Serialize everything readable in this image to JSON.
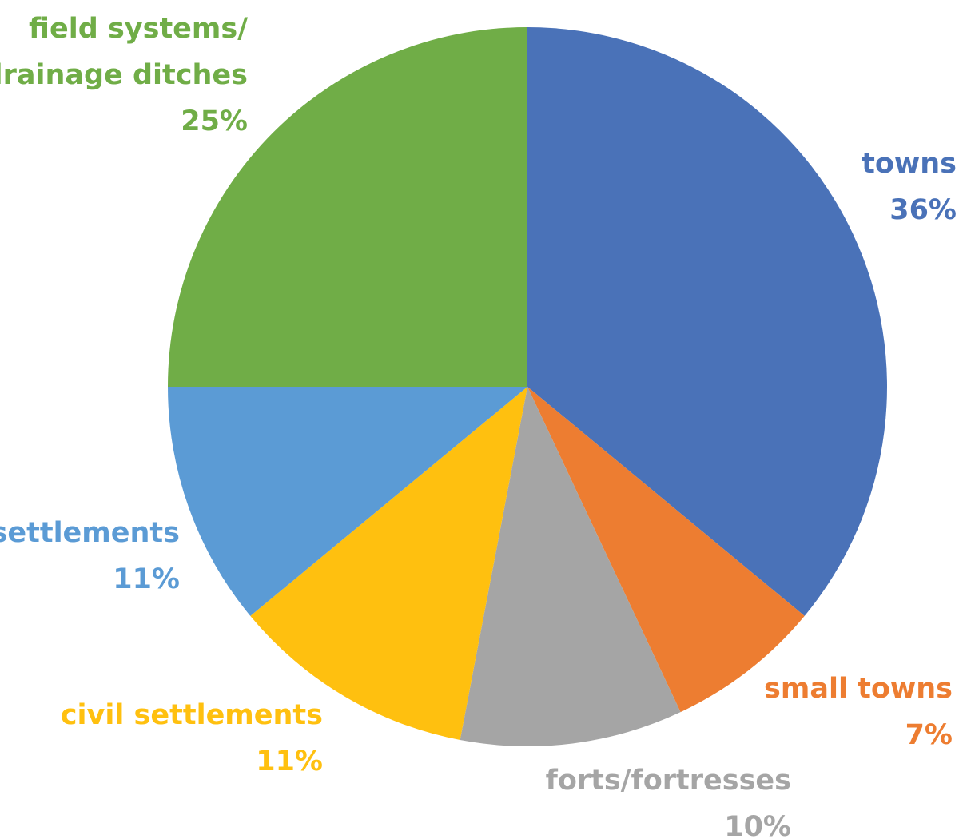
{
  "chart_data": {
    "type": "pie",
    "slices": [
      {
        "name": "towns",
        "label_lines": [
          "towns"
        ],
        "value": 36,
        "value_label": "36%",
        "color": "#4A72B8"
      },
      {
        "name": "small towns",
        "label_lines": [
          "small towns"
        ],
        "value": 7,
        "value_label": "7%",
        "color": "#ED7D31"
      },
      {
        "name": "forts/fortresses",
        "label_lines": [
          "forts/fortresses"
        ],
        "value": 10,
        "value_label": "10%",
        "color": "#A5A5A5"
      },
      {
        "name": "civil settlements",
        "label_lines": [
          "civil settlements"
        ],
        "value": 11,
        "value_label": "11%",
        "color": "#FFC00F"
      },
      {
        "name": "settlements",
        "label_lines": [
          "settlements"
        ],
        "value": 11,
        "value_label": "11%",
        "color": "#5B9BD5"
      },
      {
        "name": "field systems/ drainage ditches",
        "label_lines": [
          "field systems/",
          "drainage ditches"
        ],
        "value": 25,
        "value_label": "25%",
        "color": "#70AD47"
      }
    ],
    "start_direction": "12 o'clock",
    "direction": "clockwise",
    "legend": "none (labels placed outside slices)"
  }
}
